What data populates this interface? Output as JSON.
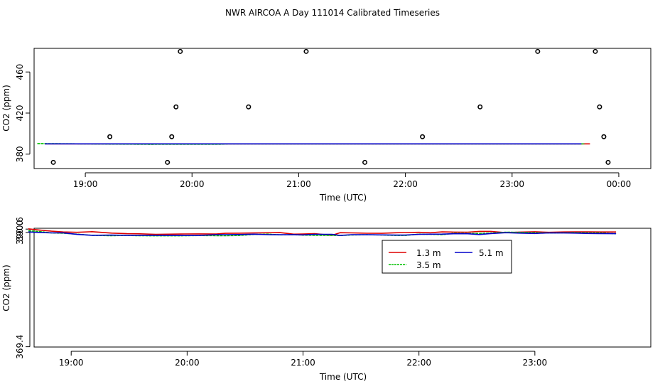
{
  "page_title": "NWR AIRCOA A  Day 111014  Calibrated Timeseries",
  "colors": {
    "red": "#dd0000",
    "green": "#00c000",
    "blue": "#0000cc",
    "purple": "#aa00aa",
    "black": "#000000"
  },
  "chart_data": [
    {
      "type": "scatter",
      "xlabel": "Time (UTC)",
      "ylabel": "CO2 (ppm)",
      "xlim": [
        18.52,
        24.3
      ],
      "ylim": [
        366,
        483
      ],
      "x_ticks": [
        19,
        20,
        21,
        22,
        23,
        24
      ],
      "x_tick_labels": [
        "19:00",
        "20:00",
        "21:00",
        "22:00",
        "23:00",
        "00:00"
      ],
      "y_ticks": [
        380,
        420,
        460
      ],
      "y_tick_labels": [
        "380",
        "420",
        "460"
      ],
      "points": [
        {
          "x": 18.7,
          "y": 372
        },
        {
          "x": 19.23,
          "y": 397
        },
        {
          "x": 19.77,
          "y": 372
        },
        {
          "x": 19.81,
          "y": 397
        },
        {
          "x": 19.85,
          "y": 426
        },
        {
          "x": 19.89,
          "y": 480
        },
        {
          "x": 20.53,
          "y": 426
        },
        {
          "x": 21.07,
          "y": 480
        },
        {
          "x": 21.62,
          "y": 372
        },
        {
          "x": 22.16,
          "y": 397
        },
        {
          "x": 22.7,
          "y": 426
        },
        {
          "x": 23.24,
          "y": 480
        },
        {
          "x": 23.78,
          "y": 480
        },
        {
          "x": 23.82,
          "y": 426
        },
        {
          "x": 23.86,
          "y": 397
        },
        {
          "x": 23.9,
          "y": 372
        }
      ],
      "series": [
        {
          "name": "1.3 m",
          "color": "#dd0000",
          "x": [
            18.62,
            23.73
          ],
          "values": [
            390.0,
            390.0
          ]
        },
        {
          "name": "3.5 m",
          "color": "#00c000",
          "x": [
            18.55,
            19.6,
            19.95,
            20.25,
            20.35,
            23.68
          ],
          "values": [
            390.3,
            389.6,
            389.7,
            389.7,
            390.0,
            390.0
          ]
        },
        {
          "name": "5.1 m",
          "color": "#0000cc",
          "x": [
            18.62,
            23.65
          ],
          "values": [
            390.0,
            390.0
          ]
        }
      ]
    },
    {
      "type": "line",
      "xlabel": "Time (UTC)",
      "ylabel": "CO2 (ppm)",
      "xlim": [
        18.68,
        24.0
      ],
      "ylim": [
        369.35,
        390.75
      ],
      "x_ticks": [
        19,
        20,
        21,
        22,
        23
      ],
      "x_tick_labels": [
        "19:00",
        "20:00",
        "21:00",
        "22:00",
        "23:00"
      ],
      "y_ticks": [
        369.4,
        390.0,
        390.6
      ],
      "y_tick_labels": [
        "369.4",
        "390.0",
        "390.6"
      ],
      "y_axis_note": "tick label text as printed; lower tick reads 369.4",
      "legend": {
        "position": "top-right",
        "entries": [
          "1.3 m",
          "3.5 m",
          "5.1 m"
        ]
      },
      "x": [
        18.63,
        18.73,
        18.83,
        18.93,
        19.05,
        19.18,
        19.35,
        19.48,
        19.57,
        19.73,
        19.98,
        20.1,
        20.25,
        20.33,
        20.45,
        20.58,
        20.7,
        20.8,
        20.92,
        21.0,
        21.1,
        21.25,
        21.32,
        21.42,
        21.55,
        21.68,
        21.8,
        21.88,
        22.0,
        22.1,
        22.2,
        22.3,
        22.42,
        22.52,
        22.62,
        22.75,
        22.87,
        23.0,
        23.12,
        23.25,
        23.35,
        23.47,
        23.55,
        23.7
      ],
      "series": [
        {
          "name": "1.3 m",
          "color": "#dd0000",
          "values": [
            390.65,
            390.42,
            390.22,
            390.08,
            390.02,
            390.14,
            389.88,
            389.78,
            389.76,
            389.66,
            389.72,
            389.74,
            389.73,
            389.84,
            389.86,
            389.92,
            389.94,
            389.97,
            389.68,
            389.72,
            389.78,
            389.48,
            389.96,
            389.92,
            389.85,
            389.84,
            389.94,
            389.98,
            390.02,
            389.94,
            390.1,
            390.06,
            390.04,
            390.18,
            390.18,
            389.96,
            390.06,
            390.12,
            390.02,
            390.08,
            390.1,
            390.1,
            390.08,
            390.08
          ]
        },
        {
          "name": "3.5 m",
          "color": "#00c000",
          "values": [
            390.3,
            390.15,
            389.92,
            389.86,
            389.68,
            389.48,
            389.4,
            389.47,
            389.42,
            389.39,
            389.41,
            389.44,
            389.42,
            389.4,
            389.45,
            389.65,
            389.68,
            389.56,
            389.58,
            389.52,
            389.48,
            389.48,
            389.44,
            389.55,
            389.58,
            389.54,
            389.45,
            389.46,
            389.68,
            389.66,
            389.6,
            389.84,
            389.82,
            389.82,
            389.88,
            390.04,
            390.02,
            389.94,
            389.92,
            389.94,
            389.96,
            389.92,
            389.92,
            389.78
          ]
        },
        {
          "name": "5.1 m",
          "color": "#0000cc",
          "values": [
            390.08,
            390.0,
            389.92,
            389.93,
            389.65,
            389.48,
            389.52,
            389.48,
            389.48,
            389.48,
            389.46,
            389.46,
            389.58,
            389.6,
            389.62,
            389.68,
            389.6,
            389.58,
            389.58,
            389.56,
            389.66,
            389.66,
            389.46,
            389.6,
            389.58,
            389.56,
            389.52,
            389.52,
            389.66,
            389.68,
            389.7,
            389.76,
            389.76,
            389.62,
            389.8,
            389.96,
            389.88,
            389.82,
            389.92,
            389.9,
            389.88,
            389.82,
            389.8,
            389.78
          ]
        }
      ]
    }
  ]
}
